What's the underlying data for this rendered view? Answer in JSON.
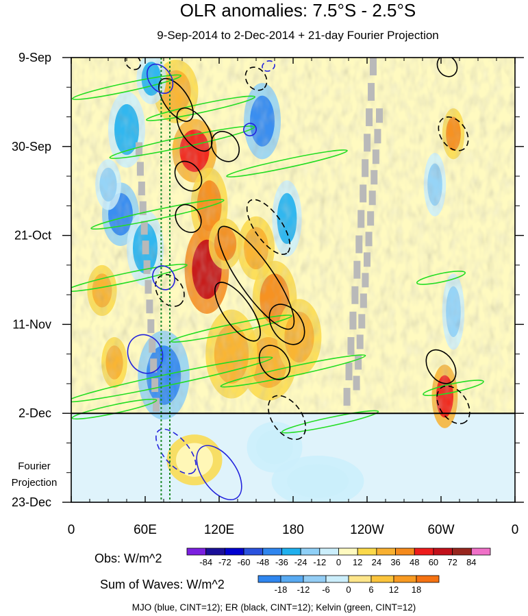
{
  "chart_data": {
    "type": "heatmap",
    "title": "OLR anomalies: 7.5°S - 2.5°S",
    "subtitle": "9-Sep-2014 to 2-Dec-2014 + 21-day Fourier Projection",
    "x_tick_labels": [
      "0",
      "60E",
      "120E",
      "180",
      "120W",
      "60W",
      "0"
    ],
    "x_ticks_deg_east": [
      0,
      60,
      120,
      180,
      240,
      300,
      360
    ],
    "y_tick_labels": [
      "9-Sep",
      "30-Sep",
      "21-Oct",
      "11-Nov",
      "2-Dec",
      "23-Dec"
    ],
    "y_ticks_day": [
      0,
      21,
      42,
      63,
      84,
      105
    ],
    "projection_start_day": 84,
    "projection_label_line1": "Fourier",
    "projection_label_line2": "Projection",
    "highlight_longitudes_deg_east": [
      73,
      80
    ],
    "obs_colorbar": {
      "label": "Obs: W/m^2",
      "levels": [
        "-84",
        "-72",
        "-60",
        "-48",
        "-36",
        "-24",
        "-12",
        "0",
        "12",
        "24",
        "36",
        "48",
        "60",
        "72",
        "84"
      ],
      "colors": [
        "#7b1fe0",
        "#1a0f99",
        "#0000d0",
        "#2a52de",
        "#2f86ef",
        "#1fb0ee",
        "#8fd0f7",
        "#cbeefb",
        "#fffac0",
        "#fbd94a",
        "#f8b030",
        "#f58a1c",
        "#ee1c1c",
        "#c2101a",
        "#98261e",
        "#f070c8"
      ]
    },
    "waves_colorbar": {
      "label": "Sum of Waves: W/m^2",
      "levels": [
        "-18",
        "-12",
        "-6",
        "0",
        "6",
        "12",
        "18"
      ],
      "colors": [
        "#2f86ef",
        "#58aaf2",
        "#93cdf5",
        "#cbeefb",
        "#fde58a",
        "#fbc43c",
        "#f89a22",
        "#f57212"
      ]
    },
    "contours_legend": "MJO (blue, CINT=12); ER (black, CINT=12); Kelvin (green, CINT=12)",
    "contour_colors": {
      "mjo": "#2222dd",
      "er": "#000000",
      "kelvin": "#22dd22"
    },
    "mjo_contours": [
      {
        "lon": 72,
        "day": 5,
        "rx": 13,
        "ry": 2.6,
        "angle": 55,
        "dashed": false
      },
      {
        "lon": 75,
        "day": 52,
        "rx": 10,
        "ry": 2.5,
        "angle": 60,
        "dashed": false
      },
      {
        "lon": 60,
        "day": 70,
        "rx": 16,
        "ry": 4,
        "angle": 65,
        "dashed": false
      },
      {
        "lon": 85,
        "day": 93,
        "rx": 22,
        "ry": 3,
        "angle": 50,
        "dashed": true
      },
      {
        "lon": 120,
        "day": 98,
        "rx": 25,
        "ry": 4,
        "angle": 55,
        "dashed": false
      },
      {
        "lon": 160,
        "day": 2,
        "rx": 4,
        "ry": 1.5,
        "angle": 70,
        "dashed": true
      },
      {
        "lon": 145,
        "day": 17,
        "rx": 5,
        "ry": 1.5,
        "angle": 60,
        "dashed": false
      }
    ],
    "er_contours": [
      {
        "lon": 85,
        "day": 10,
        "rx": 20,
        "ry": 2.8,
        "angle": 55,
        "dashed": false
      },
      {
        "lon": 100,
        "day": 17,
        "rx": 20,
        "ry": 3,
        "angle": 55,
        "dashed": false
      },
      {
        "lon": 125,
        "day": 21,
        "rx": 13,
        "ry": 3,
        "angle": 55,
        "dashed": false
      },
      {
        "lon": 95,
        "day": 38,
        "rx": 12,
        "ry": 2.8,
        "angle": 55,
        "dashed": false
      },
      {
        "lon": 160,
        "day": 40,
        "rx": 26,
        "ry": 3.2,
        "angle": 55,
        "dashed": true
      },
      {
        "lon": 150,
        "day": 52,
        "rx": 50,
        "ry": 4,
        "angle": 55,
        "dashed": false
      },
      {
        "lon": 135,
        "day": 60,
        "rx": 28,
        "ry": 3.2,
        "angle": 55,
        "dashed": false
      },
      {
        "lon": 80,
        "day": 55,
        "rx": 14,
        "ry": 3,
        "angle": 55,
        "dashed": true
      },
      {
        "lon": 175,
        "day": 63,
        "rx": 18,
        "ry": 3.5,
        "angle": 55,
        "dashed": false
      },
      {
        "lon": 165,
        "day": 72,
        "rx": 15,
        "ry": 3.2,
        "angle": 55,
        "dashed": false
      },
      {
        "lon": 175,
        "day": 85,
        "rx": 20,
        "ry": 3.5,
        "angle": 55,
        "dashed": true
      },
      {
        "lon": 300,
        "day": 73,
        "rx": 15,
        "ry": 3,
        "angle": 55,
        "dashed": false
      },
      {
        "lon": 310,
        "day": 82,
        "rx": 17,
        "ry": 3.2,
        "angle": 55,
        "dashed": true
      },
      {
        "lon": 310,
        "day": 18,
        "rx": 15,
        "ry": 3,
        "angle": 55,
        "dashed": true
      },
      {
        "lon": 305,
        "day": 2,
        "rx": 9,
        "ry": 2.2,
        "angle": 55,
        "dashed": false
      },
      {
        "lon": 150,
        "day": 5,
        "rx": 10,
        "ry": 2.3,
        "angle": 55,
        "dashed": true
      },
      {
        "lon": 50,
        "day": 1,
        "rx": 7,
        "ry": 1.6,
        "angle": 45,
        "dashed": true
      },
      {
        "lon": 95,
        "day": 28,
        "rx": 13,
        "ry": 2.8,
        "angle": 55,
        "dashed": false
      }
    ],
    "kelvin_contours": [
      {
        "lon": 45,
        "day": 7,
        "rx": 45,
        "ry": 1,
        "angle": -12,
        "dashed": false
      },
      {
        "lon": 105,
        "day": 12,
        "rx": 45,
        "ry": 1,
        "angle": -12,
        "dashed": false
      },
      {
        "lon": 90,
        "day": 20,
        "rx": 60,
        "ry": 1.2,
        "angle": -12,
        "dashed": false
      },
      {
        "lon": 175,
        "day": 25,
        "rx": 50,
        "ry": 1,
        "angle": -12,
        "dashed": false
      },
      {
        "lon": 70,
        "day": 37,
        "rx": 55,
        "ry": 1.1,
        "angle": -12,
        "dashed": false
      },
      {
        "lon": 45,
        "day": 52,
        "rx": 50,
        "ry": 1.1,
        "angle": -12,
        "dashed": false
      },
      {
        "lon": 130,
        "day": 64,
        "rx": 50,
        "ry": 1,
        "angle": -12,
        "dashed": false
      },
      {
        "lon": 80,
        "day": 76,
        "rx": 85,
        "ry": 1.3,
        "angle": -12,
        "dashed": false
      },
      {
        "lon": 180,
        "day": 74,
        "rx": 60,
        "ry": 1.1,
        "angle": -12,
        "dashed": false
      },
      {
        "lon": 210,
        "day": 86,
        "rx": 40,
        "ry": 1,
        "angle": -12,
        "dashed": false
      },
      {
        "lon": 300,
        "day": 52,
        "rx": 20,
        "ry": 1,
        "angle": -12,
        "dashed": false
      },
      {
        "lon": 310,
        "day": 78,
        "rx": 25,
        "ry": 1,
        "angle": -12,
        "dashed": false
      },
      {
        "lon": 35,
        "day": 83,
        "rx": 35,
        "ry": 1,
        "angle": -12,
        "dashed": false
      }
    ],
    "positive_anomaly_patches": [
      {
        "lon": 100,
        "day": 22,
        "rx": 12,
        "ry": 5,
        "value": 48
      },
      {
        "lon": 112,
        "day": 35,
        "rx": 10,
        "ry": 6,
        "value": 36
      },
      {
        "lon": 110,
        "day": 50,
        "rx": 12,
        "ry": 7,
        "value": 60
      },
      {
        "lon": 125,
        "day": 44,
        "rx": 9,
        "ry": 4,
        "value": 36
      },
      {
        "lon": 150,
        "day": 45,
        "rx": 10,
        "ry": 5,
        "value": 24
      },
      {
        "lon": 165,
        "day": 57,
        "rx": 12,
        "ry": 6,
        "value": 36
      },
      {
        "lon": 160,
        "day": 72,
        "rx": 15,
        "ry": 6,
        "value": 24
      },
      {
        "lon": 185,
        "day": 66,
        "rx": 12,
        "ry": 6,
        "value": 24
      },
      {
        "lon": 130,
        "day": 70,
        "rx": 14,
        "ry": 7,
        "value": 24
      },
      {
        "lon": 85,
        "day": 8,
        "rx": 12,
        "ry": 5,
        "value": 24
      },
      {
        "lon": 303,
        "day": 80,
        "rx": 7,
        "ry": 5,
        "value": 48
      },
      {
        "lon": 310,
        "day": 18,
        "rx": 6,
        "ry": 4,
        "value": 36
      },
      {
        "lon": 35,
        "day": 72,
        "rx": 7,
        "ry": 4,
        "value": 24
      },
      {
        "lon": 25,
        "day": 55,
        "rx": 8,
        "ry": 4,
        "value": 24
      },
      {
        "lon": 100,
        "day": 95,
        "rx": 15,
        "ry": 4,
        "value": 6
      }
    ],
    "negative_anomaly_patches": [
      {
        "lon": 45,
        "day": 17,
        "rx": 10,
        "ry": 6,
        "value": -36
      },
      {
        "lon": 40,
        "day": 37,
        "rx": 10,
        "ry": 5,
        "value": -48
      },
      {
        "lon": 60,
        "day": 45,
        "rx": 10,
        "ry": 6,
        "value": -36
      },
      {
        "lon": 75,
        "day": 75,
        "rx": 14,
        "ry": 7,
        "value": -48
      },
      {
        "lon": 155,
        "day": 15,
        "rx": 10,
        "ry": 6,
        "value": -48
      },
      {
        "lon": 175,
        "day": 38,
        "rx": 8,
        "ry": 6,
        "value": -36
      },
      {
        "lon": 295,
        "day": 30,
        "rx": 6,
        "ry": 5,
        "value": -24
      },
      {
        "lon": 310,
        "day": 60,
        "rx": 6,
        "ry": 6,
        "value": -24
      },
      {
        "lon": 65,
        "day": 5,
        "rx": 8,
        "ry": 4,
        "value": -36
      },
      {
        "lon": 30,
        "day": 30,
        "rx": 7,
        "ry": 4,
        "value": -24
      },
      {
        "lon": 165,
        "day": 92,
        "rx": 15,
        "ry": 4,
        "value": -6
      },
      {
        "lon": 200,
        "day": 100,
        "rx": 25,
        "ry": 4,
        "value": -6
      }
    ],
    "missing_data_strips": [
      {
        "lon_start": 245,
        "day_start": 0,
        "lon_end": 222,
        "day_end": 84
      },
      {
        "lon_start": 250,
        "day_start": 12,
        "lon_end": 230,
        "day_end": 80
      },
      {
        "lon_start": 55,
        "day_start": 20,
        "lon_end": 70,
        "day_end": 85
      }
    ],
    "xlim_deg_east": [
      0,
      360
    ],
    "ylim_day": [
      0,
      105
    ]
  }
}
